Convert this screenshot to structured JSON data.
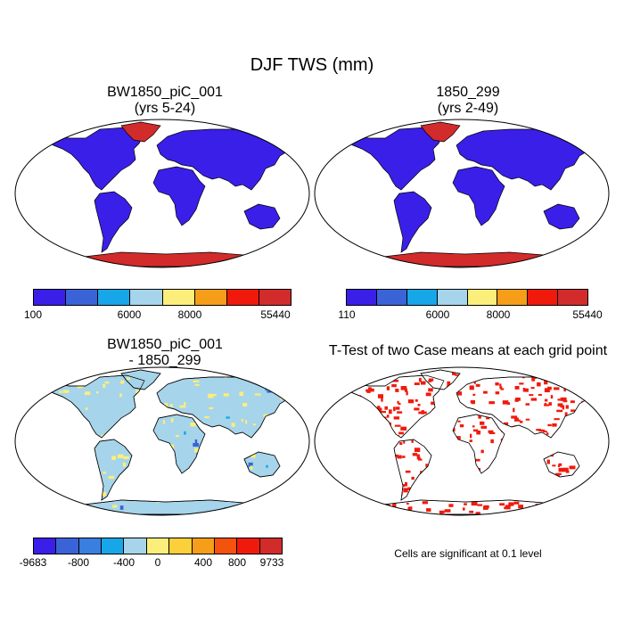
{
  "title": "DJF TWS (mm)",
  "panels": {
    "case1": {
      "title_line1": "BW1850_piC_001",
      "title_line2": "(yrs 5-24)",
      "colorbar_ticks": [
        "100",
        "6000",
        "8000",
        "55440"
      ]
    },
    "case2": {
      "title_line1": "1850_299",
      "title_line2": "(yrs 2-49)",
      "colorbar_ticks": [
        "110",
        "6000",
        "8000",
        "55440"
      ]
    },
    "diff": {
      "title_line1": "BW1850_piC_001",
      "title_line2": "- 1850_299",
      "colorbar_ticks": [
        "-9683",
        "-800",
        "-400",
        "0",
        "400",
        "800",
        "9733"
      ]
    },
    "ttest": {
      "title": "T-Test of two Case means at each grid point",
      "note": "Cells are significant at 0.1 level"
    }
  },
  "colors": {
    "abs_colorbar": [
      "#3a1fe8",
      "#3b63d8",
      "#17a6e8",
      "#a6d4ea",
      "#fbee7a",
      "#f69d1a",
      "#f01a0c",
      "#d22b2b"
    ],
    "diff_colorbar": [
      "#3a1fe8",
      "#3b63d8",
      "#3a7ee0",
      "#17a6e8",
      "#a6d4ea",
      "#fbee7a",
      "#fbd03a",
      "#f69d1a",
      "#f5520e",
      "#f01a0c",
      "#d22b2b"
    ],
    "land": "#3a1fe8",
    "ice": "#d22b2b",
    "diff_land": "#a6d4ea",
    "diff_patch": "#fbee7a",
    "significant": "#f01a0c"
  }
}
